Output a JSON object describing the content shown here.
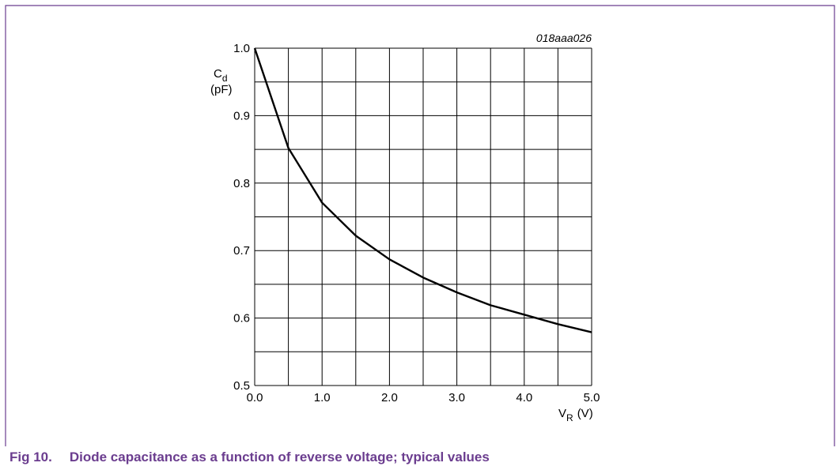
{
  "chart_data": {
    "type": "line",
    "code": "018aaa026",
    "ylabel": {
      "symbol": "C",
      "subscript": "d",
      "unit": "(pF)"
    },
    "xlabel": {
      "symbol": "V",
      "subscript": "R",
      "unit": "(V)"
    },
    "caption": {
      "number": "Fig 10.",
      "text": "Diode capacitance as a function of reverse voltage; typical values"
    },
    "x": [
      0,
      0.5,
      1.0,
      1.5,
      2.0,
      2.5,
      3.0,
      3.5,
      4.0,
      4.5,
      5.0
    ],
    "series": [
      {
        "color": "#000000",
        "values": [
          1.0,
          0.852,
          0.771,
          0.722,
          0.687,
          0.66,
          0.638,
          0.619,
          0.605,
          0.591,
          0.579
        ]
      }
    ],
    "xlim": [
      0,
      5
    ],
    "ylim": [
      0.5,
      1.0
    ],
    "xticks": [
      {
        "value": 0,
        "label": "0.0"
      },
      {
        "value": 1,
        "label": "1.0"
      },
      {
        "value": 2,
        "label": "2.0"
      },
      {
        "value": 3,
        "label": "3.0"
      },
      {
        "value": 4,
        "label": "4.0"
      },
      {
        "value": 5,
        "label": "5.0"
      }
    ],
    "yticks": [
      0.5,
      0.6,
      0.7,
      0.8,
      0.9,
      {
        "value": 1,
        "label": "1.0"
      }
    ],
    "xminor": [
      0.5,
      1.5,
      2.5,
      3.5,
      4.5
    ],
    "yminor": [
      0.55,
      0.65,
      0.75,
      0.85,
      0.95
    ],
    "grid": true
  }
}
